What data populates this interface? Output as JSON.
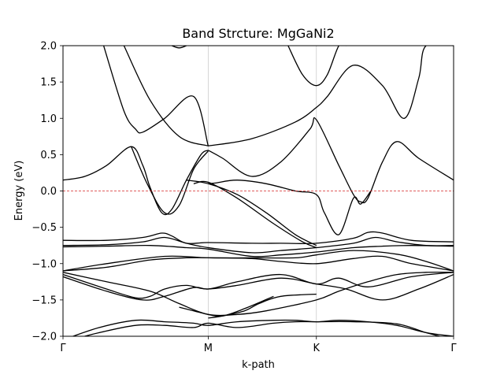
{
  "chart_data": {
    "type": "line",
    "title": "Band Strcture: MgGaNi2",
    "xlabel": "k-path",
    "ylabel": "Energy (eV)",
    "ylim": [
      -2.0,
      2.0
    ],
    "yticks": [
      "-2.0",
      "-1.5",
      "-1.0",
      "-0.5",
      "0.0",
      "0.5",
      "1.0",
      "1.5",
      "2.0"
    ],
    "xticks": [
      {
        "label": "Γ",
        "pos": 0.0
      },
      {
        "label": "M",
        "pos": 1.0
      },
      {
        "label": "K",
        "pos": 1.745
      },
      {
        "label": "Γ",
        "pos": 2.69
      }
    ],
    "xlim": [
      0.0,
      2.69
    ],
    "fermi_level": 0.0,
    "grid": "vertical lines at high-symmetry points",
    "colors": {
      "bands": "#000000",
      "fermi": "#d62728",
      "grid": "#cccccc"
    },
    "series": [
      {
        "x": [
          0.28,
          0.42,
          0.5,
          0.55,
          0.7,
          0.9,
          1.0
        ],
        "y": [
          2.0,
          1.1,
          0.85,
          0.81,
          1.0,
          1.3,
          0.62
        ]
      },
      {
        "x": [
          0.42,
          0.6,
          0.8,
          1.0
        ],
        "y": [
          2.0,
          1.25,
          0.75,
          0.62
        ]
      },
      {
        "x": [
          1.0,
          1.3,
          1.6,
          1.745,
          1.82,
          2.0,
          2.2,
          2.35,
          2.45,
          2.5,
          2.69
        ],
        "y": [
          0.62,
          0.72,
          0.95,
          1.15,
          1.3,
          1.73,
          1.45,
          1.0,
          1.55,
          2.0,
          2.0
        ]
      },
      {
        "x": [
          1.55,
          1.65,
          1.745,
          1.82,
          1.9,
          1.95
        ],
        "y": [
          2.0,
          1.6,
          1.45,
          1.6,
          2.0,
          2.0
        ]
      },
      {
        "x": [
          0.75,
          0.8,
          0.85
        ],
        "y": [
          2.0,
          1.97,
          2.0
        ]
      },
      {
        "x": [
          0.0,
          0.15,
          0.3,
          0.47,
          0.55,
          0.6,
          0.68,
          0.75,
          0.85,
          0.95,
          1.0
        ],
        "y": [
          0.15,
          0.2,
          0.35,
          0.61,
          0.35,
          0.05,
          -0.3,
          -0.25,
          0.15,
          0.5,
          0.56
        ]
      },
      {
        "x": [
          0.47,
          0.58,
          0.7,
          0.8,
          0.9,
          1.0
        ],
        "y": [
          0.61,
          0.1,
          -0.3,
          -0.2,
          0.3,
          0.55
        ]
      },
      {
        "x": [
          1.0,
          1.1,
          1.3,
          1.5,
          1.7,
          1.745,
          1.9,
          2.0,
          2.05,
          2.1,
          2.2,
          2.3,
          2.45,
          2.69
        ],
        "y": [
          0.56,
          0.45,
          0.2,
          0.4,
          0.85,
          0.98,
          0.35,
          -0.05,
          -0.15,
          -0.1,
          0.4,
          0.68,
          0.45,
          0.15
        ]
      },
      {
        "x": [
          1.0,
          1.05,
          1.2,
          1.4,
          1.6,
          1.745,
          1.8,
          1.9,
          2.0,
          2.05,
          2.12
        ],
        "y": [
          0.1,
          0.11,
          0.15,
          0.1,
          0.0,
          -0.05,
          -0.3,
          -0.6,
          -0.1,
          -0.18,
          0.0
        ]
      },
      {
        "x": [
          0.85,
          1.0,
          1.2,
          1.4,
          1.6,
          1.745
        ],
        "y": [
          0.15,
          0.1,
          -0.05,
          -0.3,
          -0.6,
          -0.75
        ]
      },
      {
        "x": [
          0.9,
          1.0,
          1.2,
          1.45,
          1.65,
          1.745
        ],
        "y": [
          0.1,
          0.12,
          -0.1,
          -0.45,
          -0.7,
          -0.78
        ]
      },
      {
        "x": [
          0.0,
          0.3,
          0.55,
          0.68,
          0.75,
          0.85,
          1.0,
          1.3,
          1.5,
          1.745,
          2.0,
          2.1,
          2.2,
          2.4,
          2.69
        ],
        "y": [
          -0.68,
          -0.68,
          -0.64,
          -0.58,
          -0.62,
          -0.72,
          -0.71,
          -0.72,
          -0.72,
          -0.72,
          -0.65,
          -0.57,
          -0.58,
          -0.68,
          -0.7
        ]
      },
      {
        "x": [
          0.0,
          0.3,
          0.55,
          0.7,
          0.85,
          1.0,
          1.3,
          1.5,
          1.745,
          2.0,
          2.15,
          2.3,
          2.5,
          2.69
        ],
        "y": [
          -0.75,
          -0.74,
          -0.7,
          -0.64,
          -0.72,
          -0.78,
          -0.85,
          -0.82,
          -0.78,
          -0.72,
          -0.64,
          -0.7,
          -0.75,
          -0.75
        ]
      },
      {
        "x": [
          0.0,
          0.3,
          0.6,
          0.85,
          1.0,
          1.3,
          1.5,
          1.745,
          2.0,
          2.2,
          2.4,
          2.69
        ],
        "y": [
          -0.77,
          -0.76,
          -0.75,
          -0.78,
          -0.8,
          -0.9,
          -0.88,
          -0.84,
          -0.78,
          -0.76,
          -0.75,
          -0.76
        ]
      },
      {
        "x": [
          0.0,
          0.3,
          0.7,
          1.0,
          1.3,
          1.6,
          1.745,
          2.0,
          2.3,
          2.5,
          2.69
        ],
        "y": [
          -1.1,
          -1.0,
          -0.9,
          -0.92,
          -0.92,
          -0.92,
          -0.88,
          -0.82,
          -0.87,
          -0.97,
          -1.1
        ]
      },
      {
        "x": [
          0.0,
          0.3,
          0.6,
          0.85,
          1.0,
          1.3,
          1.5,
          1.745,
          2.0,
          2.2,
          2.4,
          2.69
        ],
        "y": [
          -1.1,
          -1.05,
          -0.95,
          -0.92,
          -0.92,
          -0.93,
          -0.97,
          -1.0,
          -0.93,
          -0.9,
          -1.0,
          -1.1
        ]
      },
      {
        "x": [
          0.0,
          0.3,
          0.6,
          0.8,
          1.0,
          1.2,
          1.4,
          1.745,
          1.9,
          2.1,
          2.3,
          2.5,
          2.69
        ],
        "y": [
          -1.12,
          -1.25,
          -1.38,
          -1.55,
          -1.7,
          -1.7,
          -1.65,
          -1.5,
          -1.38,
          -1.25,
          -1.15,
          -1.12,
          -1.12
        ]
      },
      {
        "x": [
          0.0,
          0.3,
          0.5,
          0.6,
          0.7,
          0.85,
          1.0,
          1.2,
          1.5,
          1.745,
          1.9,
          2.1,
          2.4,
          2.69
        ],
        "y": [
          -1.15,
          -1.35,
          -1.47,
          -1.45,
          -1.35,
          -1.3,
          -1.35,
          -1.25,
          -1.15,
          -1.28,
          -1.2,
          -1.32,
          -1.18,
          -1.12
        ]
      },
      {
        "x": [
          0.0,
          0.3,
          0.55,
          0.7,
          0.9,
          1.0,
          1.2,
          1.5,
          1.745,
          1.95,
          2.2,
          2.45,
          2.69
        ],
        "y": [
          -1.18,
          -1.38,
          -1.5,
          -1.45,
          -1.33,
          -1.35,
          -1.3,
          -1.2,
          -1.28,
          -1.35,
          -1.5,
          -1.35,
          -1.15
        ]
      },
      {
        "x": [
          0.0,
          0.25,
          0.5,
          0.7,
          0.9,
          1.0,
          1.2,
          1.45,
          1.6,
          1.745,
          1.9,
          2.1,
          2.3,
          2.5,
          2.69
        ],
        "y": [
          -2.05,
          -1.88,
          -1.78,
          -1.8,
          -1.82,
          -1.85,
          -1.8,
          -1.78,
          -1.78,
          -1.8,
          -1.78,
          -1.8,
          -1.85,
          -1.95,
          -2.0
        ]
      },
      {
        "x": [
          0.0,
          0.25,
          0.5,
          0.7,
          0.9,
          1.0,
          1.2,
          1.45,
          1.6,
          1.745,
          2.0,
          2.3,
          2.5,
          2.69
        ],
        "y": [
          -2.08,
          -1.95,
          -1.85,
          -1.85,
          -1.88,
          -1.82,
          -1.88,
          -1.82,
          -1.8,
          -1.8,
          -1.8,
          -1.83,
          -1.95,
          -2.05
        ]
      },
      {
        "x": [
          1.0,
          1.1,
          1.25,
          1.35,
          1.5,
          1.745
        ],
        "y": [
          -1.75,
          -1.72,
          -1.65,
          -1.55,
          -1.45,
          -1.42
        ]
      },
      {
        "x": [
          0.8,
          0.9,
          1.0,
          1.1,
          1.25,
          1.45
        ],
        "y": [
          -1.6,
          -1.65,
          -1.7,
          -1.72,
          -1.62,
          -1.45
        ]
      }
    ]
  }
}
